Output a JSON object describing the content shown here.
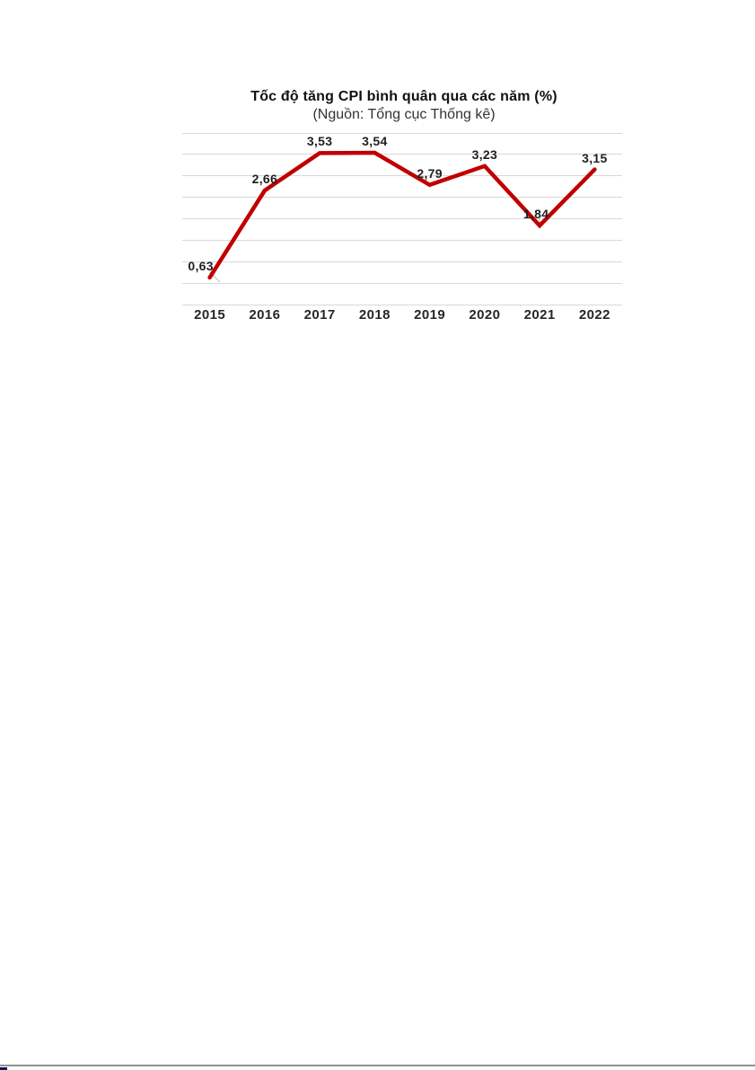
{
  "page": {
    "background": "#ffffff",
    "bottom_rule_color": "#909090",
    "bottom_dash_color": "#15155c"
  },
  "chart_data": {
    "type": "line",
    "title": "Tốc độ tăng CPI bình quân qua các năm (%)",
    "subtitle": "(Nguồn: Tổng cục Thống kê)",
    "categories": [
      "2015",
      "2016",
      "2017",
      "2018",
      "2019",
      "2020",
      "2021",
      "2022"
    ],
    "values": [
      0.63,
      2.66,
      3.53,
      3.54,
      2.79,
      3.23,
      1.84,
      3.15
    ],
    "point_labels": [
      "0,63",
      "2,66",
      "3,53",
      "3,54",
      "2,79",
      "3,23",
      "1,84",
      "3,15"
    ],
    "xlabel": "",
    "ylabel": "",
    "ylim": [
      0,
      4
    ],
    "gridline_step": 0.5,
    "grid": true,
    "legend_position": "none",
    "colors": {
      "line": "#c00000",
      "gridline": "#d9d9d9",
      "data_label": "#1f1f1f",
      "axis_label": "#262626",
      "title": "#111111",
      "subtitle": "#333333",
      "leader_line": "#c4c4c4"
    }
  }
}
